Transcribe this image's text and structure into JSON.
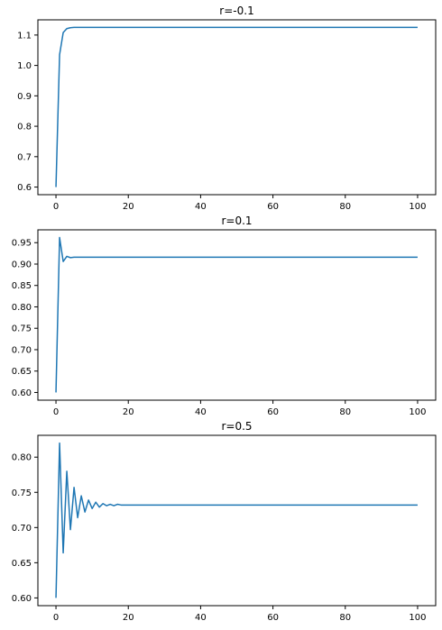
{
  "chart_data": [
    {
      "type": "line",
      "title": "r=-0.1",
      "xlabel": "",
      "ylabel": "",
      "xlim": [
        -5,
        105
      ],
      "ylim": [
        0.575,
        1.15
      ],
      "xticks": [
        0,
        20,
        40,
        60,
        80,
        100
      ],
      "xticklabels": [
        "0",
        "20",
        "40",
        "60",
        "80",
        "100"
      ],
      "yticks": [
        0.6,
        0.7,
        0.8,
        0.9,
        1.0,
        1.1
      ],
      "yticklabels": [
        "0.6",
        "0.7",
        "0.8",
        "0.9",
        "1.0",
        "1.1"
      ],
      "grid": false,
      "series": [
        {
          "color": "#1f77b4",
          "x": [
            0,
            1,
            2,
            3,
            4,
            5,
            6,
            8,
            10,
            20,
            40,
            60,
            80,
            100
          ],
          "y": [
            0.6,
            1.035,
            1.108,
            1.121,
            1.124,
            1.125,
            1.125,
            1.125,
            1.125,
            1.125,
            1.125,
            1.125,
            1.125,
            1.125
          ]
        }
      ]
    },
    {
      "type": "line",
      "title": "r=0.1",
      "xlabel": "",
      "ylabel": "",
      "xlim": [
        -5,
        105
      ],
      "ylim": [
        0.582,
        0.98
      ],
      "xticks": [
        0,
        20,
        40,
        60,
        80,
        100
      ],
      "xticklabels": [
        "0",
        "20",
        "40",
        "60",
        "80",
        "100"
      ],
      "yticks": [
        0.6,
        0.65,
        0.7,
        0.75,
        0.8,
        0.85,
        0.9,
        0.95
      ],
      "yticklabels": [
        "0.60",
        "0.65",
        "0.70",
        "0.75",
        "0.80",
        "0.85",
        "0.90",
        "0.95"
      ],
      "grid": false,
      "series": [
        {
          "color": "#1f77b4",
          "x": [
            0,
            1,
            2,
            3,
            4,
            5,
            6,
            8,
            10,
            20,
            40,
            60,
            80,
            100
          ],
          "y": [
            0.6,
            0.962,
            0.906,
            0.918,
            0.915,
            0.916,
            0.916,
            0.916,
            0.916,
            0.916,
            0.916,
            0.916,
            0.916,
            0.916
          ]
        }
      ]
    },
    {
      "type": "line",
      "title": "r=0.5",
      "xlabel": "",
      "ylabel": "",
      "xlim": [
        -5,
        105
      ],
      "ylim": [
        0.589,
        0.831
      ],
      "xticks": [
        0,
        20,
        40,
        60,
        80,
        100
      ],
      "xticklabels": [
        "0",
        "20",
        "40",
        "60",
        "80",
        "100"
      ],
      "yticks": [
        0.6,
        0.65,
        0.7,
        0.75,
        0.8
      ],
      "yticklabels": [
        "0.60",
        "0.65",
        "0.70",
        "0.75",
        "0.80"
      ],
      "grid": false,
      "series": [
        {
          "color": "#1f77b4",
          "x": [
            0,
            1,
            2,
            3,
            4,
            5,
            6,
            7,
            8,
            9,
            10,
            11,
            12,
            13,
            14,
            15,
            16,
            17,
            18,
            19,
            20,
            22,
            25,
            30,
            40,
            60,
            80,
            100
          ],
          "y": [
            0.6,
            0.82,
            0.664,
            0.78,
            0.697,
            0.757,
            0.714,
            0.745,
            0.722,
            0.739,
            0.727,
            0.736,
            0.729,
            0.734,
            0.731,
            0.733,
            0.731,
            0.733,
            0.732,
            0.732,
            0.732,
            0.732,
            0.732,
            0.732,
            0.732,
            0.732,
            0.732,
            0.732
          ]
        }
      ]
    }
  ]
}
